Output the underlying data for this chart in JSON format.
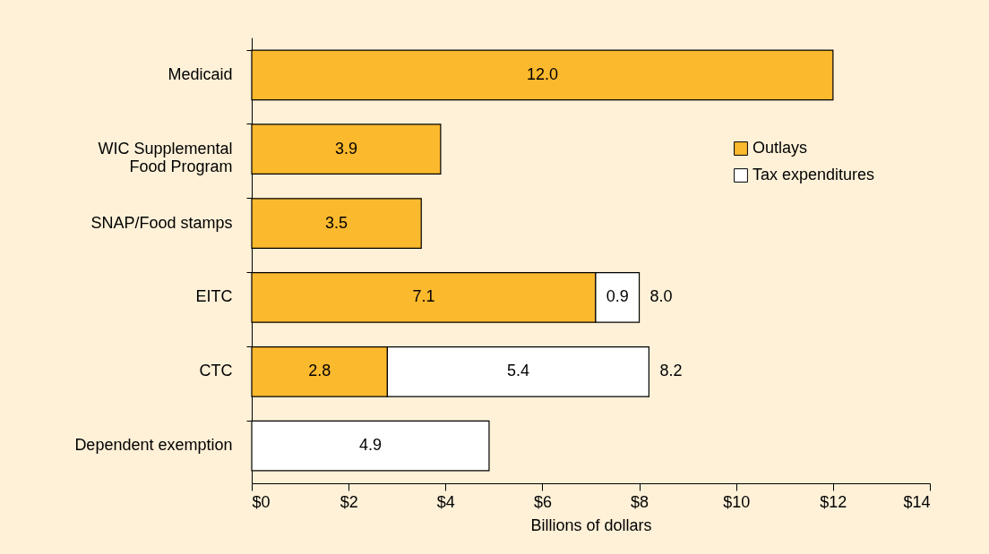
{
  "chart_data": {
    "type": "bar",
    "orientation": "horizontal",
    "stacked": true,
    "categories": [
      "Medicaid",
      "WIC Supplemental\nFood Program",
      "SNAP/Food stamps",
      "EITC",
      "CTC",
      "Dependent exemption"
    ],
    "series": [
      {
        "name": "Outlays",
        "color": "#fbb92e",
        "values": [
          12.0,
          3.9,
          3.5,
          7.1,
          2.8,
          null
        ],
        "value_labels": [
          "12.0",
          "3.9",
          "3.5",
          "7.1",
          "2.8",
          null
        ]
      },
      {
        "name": "Tax expenditures",
        "color": "#ffffff",
        "values": [
          null,
          null,
          null,
          0.9,
          5.4,
          4.9
        ],
        "value_labels": [
          null,
          null,
          null,
          "0.9",
          "5.4",
          "4.9"
        ]
      }
    ],
    "totals": [
      null,
      null,
      null,
      "8.0",
      "8.2",
      null
    ],
    "xlabel": "Billions of dollars",
    "xlim": [
      0,
      14
    ],
    "xticks": [
      {
        "value": 0,
        "label": "$0"
      },
      {
        "value": 2,
        "label": "$2"
      },
      {
        "value": 4,
        "label": "$4"
      },
      {
        "value": 6,
        "label": "$6"
      },
      {
        "value": 8,
        "label": "$8"
      },
      {
        "value": 10,
        "label": "$10"
      },
      {
        "value": 12,
        "label": "$12"
      },
      {
        "value": 14,
        "label": "$14"
      }
    ],
    "grid": false,
    "legend": "top right"
  }
}
